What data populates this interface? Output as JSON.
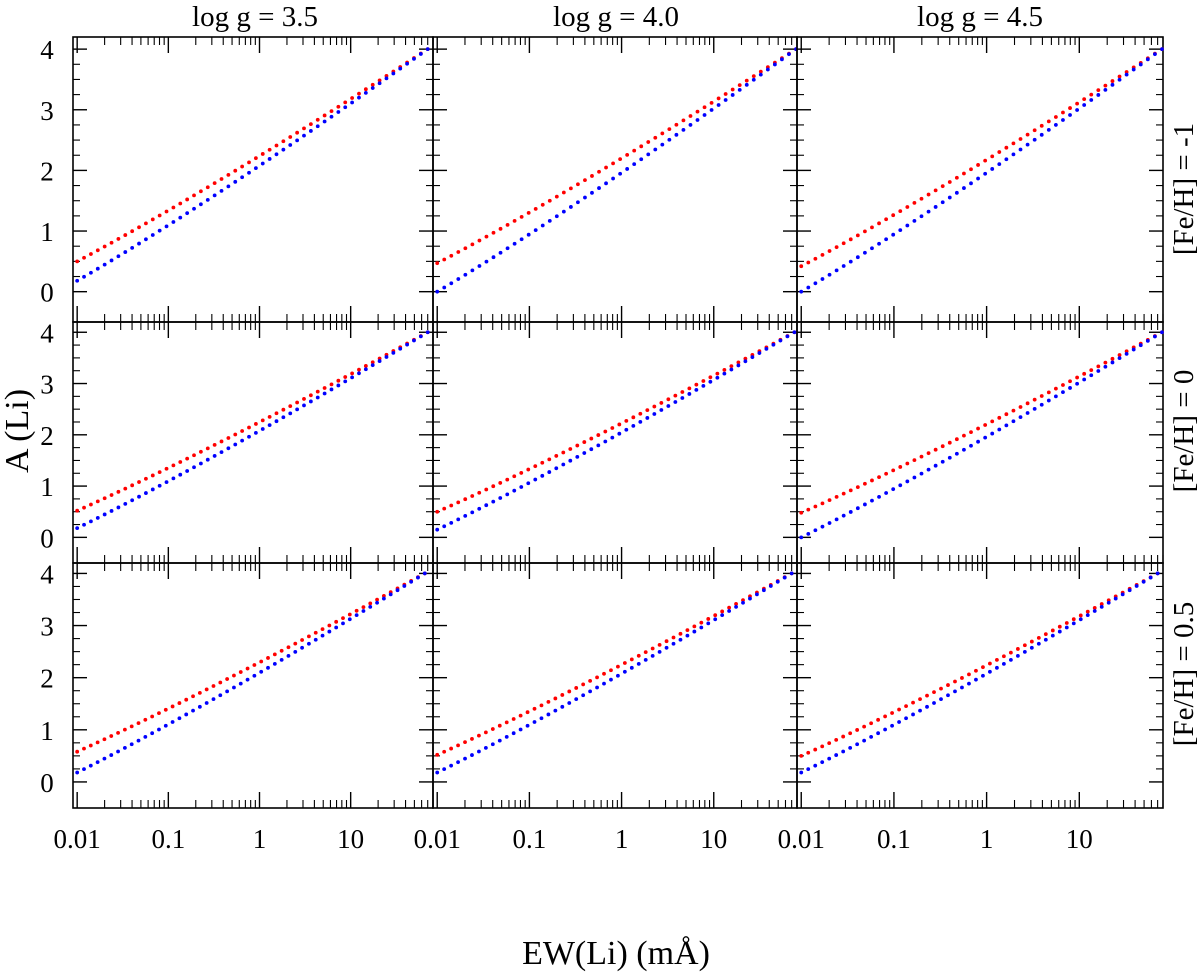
{
  "figure": {
    "xlabel": "EW(Li) (mÅ)",
    "ylabel": "A (Li)",
    "column_titles": [
      "log g = 3.5",
      "log g = 4.0",
      "log g = 4.5"
    ],
    "row_titles": [
      "[Fe/H] = -1",
      "[Fe/H] = 0",
      "[Fe/H] = 0.5"
    ],
    "x_tick_labels": [
      "0.01",
      "0.1",
      "1",
      "10"
    ],
    "y_tick_labels": [
      "0",
      "1",
      "2",
      "3",
      "4"
    ],
    "colors": {
      "series_red": "#ff0000",
      "series_blue": "#0000ff"
    }
  },
  "chart_data": [
    {
      "type": "scatter",
      "row": 0,
      "col": 0,
      "xscale": "log",
      "xlim": [
        0.009,
        80
      ],
      "ylim": [
        -0.5,
        4.2
      ],
      "grid": false,
      "series": [
        {
          "color": "#ff0000",
          "x_range": [
            0.01,
            70
          ],
          "y_at_min_x": 0.5,
          "y_at_max_x": 4.0
        },
        {
          "color": "#0000ff",
          "x_range": [
            0.01,
            70
          ],
          "y_at_min_x": 0.18,
          "y_at_max_x": 4.0
        }
      ]
    },
    {
      "type": "scatter",
      "row": 0,
      "col": 1,
      "xscale": "log",
      "xlim": [
        0.009,
        80
      ],
      "ylim": [
        -0.5,
        4.2
      ],
      "grid": false,
      "series": [
        {
          "color": "#ff0000",
          "x_range": [
            0.01,
            78
          ],
          "y_at_min_x": 0.47,
          "y_at_max_x": 4.0
        },
        {
          "color": "#0000ff",
          "x_range": [
            0.01,
            78
          ],
          "y_at_min_x": 0.0,
          "y_at_max_x": 4.0
        }
      ]
    },
    {
      "type": "scatter",
      "row": 0,
      "col": 2,
      "xscale": "log",
      "xlim": [
        0.009,
        80
      ],
      "ylim": [
        -0.5,
        4.2
      ],
      "grid": false,
      "series": [
        {
          "color": "#ff0000",
          "x_range": [
            0.01,
            78
          ],
          "y_at_min_x": 0.42,
          "y_at_max_x": 4.0
        },
        {
          "color": "#0000ff",
          "x_range": [
            0.01,
            78
          ],
          "y_at_min_x": 0.0,
          "y_at_max_x": 4.0
        }
      ]
    },
    {
      "type": "scatter",
      "row": 1,
      "col": 0,
      "xscale": "log",
      "xlim": [
        0.009,
        80
      ],
      "ylim": [
        -0.5,
        4.2
      ],
      "grid": false,
      "series": [
        {
          "color": "#ff0000",
          "x_range": [
            0.01,
            70
          ],
          "y_at_min_x": 0.52,
          "y_at_max_x": 4.0
        },
        {
          "color": "#0000ff",
          "x_range": [
            0.01,
            70
          ],
          "y_at_min_x": 0.18,
          "y_at_max_x": 4.0
        }
      ]
    },
    {
      "type": "scatter",
      "row": 1,
      "col": 1,
      "xscale": "log",
      "xlim": [
        0.009,
        80
      ],
      "ylim": [
        -0.5,
        4.2
      ],
      "grid": false,
      "series": [
        {
          "color": "#ff0000",
          "x_range": [
            0.01,
            75
          ],
          "y_at_min_x": 0.5,
          "y_at_max_x": 4.0
        },
        {
          "color": "#0000ff",
          "x_range": [
            0.01,
            75
          ],
          "y_at_min_x": 0.15,
          "y_at_max_x": 4.0
        }
      ]
    },
    {
      "type": "scatter",
      "row": 1,
      "col": 2,
      "xscale": "log",
      "xlim": [
        0.009,
        80
      ],
      "ylim": [
        -0.5,
        4.2
      ],
      "grid": false,
      "series": [
        {
          "color": "#ff0000",
          "x_range": [
            0.01,
            78
          ],
          "y_at_min_x": 0.48,
          "y_at_max_x": 4.0
        },
        {
          "color": "#0000ff",
          "x_range": [
            0.01,
            78
          ],
          "y_at_min_x": 0.0,
          "y_at_max_x": 4.0
        }
      ]
    },
    {
      "type": "scatter",
      "row": 2,
      "col": 0,
      "xscale": "log",
      "xlim": [
        0.009,
        80
      ],
      "ylim": [
        -0.5,
        4.2
      ],
      "grid": false,
      "series": [
        {
          "color": "#ff0000",
          "x_range": [
            0.01,
            65
          ],
          "y_at_min_x": 0.58,
          "y_at_max_x": 4.0
        },
        {
          "color": "#0000ff",
          "x_range": [
            0.01,
            65
          ],
          "y_at_min_x": 0.18,
          "y_at_max_x": 4.0
        }
      ]
    },
    {
      "type": "scatter",
      "row": 2,
      "col": 1,
      "xscale": "log",
      "xlim": [
        0.009,
        80
      ],
      "ylim": [
        -0.5,
        4.2
      ],
      "grid": false,
      "series": [
        {
          "color": "#ff0000",
          "x_range": [
            0.01,
            70
          ],
          "y_at_min_x": 0.52,
          "y_at_max_x": 4.0
        },
        {
          "color": "#0000ff",
          "x_range": [
            0.01,
            70
          ],
          "y_at_min_x": 0.18,
          "y_at_max_x": 4.0
        }
      ]
    },
    {
      "type": "scatter",
      "row": 2,
      "col": 2,
      "xscale": "log",
      "xlim": [
        0.009,
        80
      ],
      "ylim": [
        -0.5,
        4.2
      ],
      "grid": false,
      "series": [
        {
          "color": "#ff0000",
          "x_range": [
            0.01,
            70
          ],
          "y_at_min_x": 0.5,
          "y_at_max_x": 4.0
        },
        {
          "color": "#0000ff",
          "x_range": [
            0.01,
            70
          ],
          "y_at_min_x": 0.18,
          "y_at_max_x": 4.0
        }
      ]
    }
  ]
}
